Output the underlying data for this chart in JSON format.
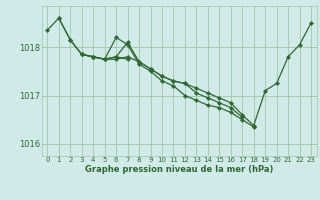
{
  "background_color": "#d0eaea",
  "plot_bg_color": "#d0eaea",
  "line_color": "#2d6a2d",
  "grid_color": "#9fc8a0",
  "xlabel": "Graphe pression niveau de la mer (hPa)",
  "ylim": [
    1015.75,
    1018.85
  ],
  "xlim": [
    -0.5,
    23.5
  ],
  "yticks": [
    1016,
    1017,
    1018
  ],
  "xticks": [
    0,
    1,
    2,
    3,
    4,
    5,
    6,
    7,
    8,
    9,
    10,
    11,
    12,
    13,
    14,
    15,
    16,
    17,
    18,
    19,
    20,
    21,
    22,
    23
  ],
  "series": [
    [
      0,
      1018.35
    ],
    [
      1,
      1018.6
    ],
    [
      null,
      null
    ],
    [
      null,
      null
    ]
  ],
  "lines": [
    {
      "x": [
        0,
        1,
        2,
        3,
        4,
        5,
        6,
        7,
        8,
        9,
        10,
        11,
        12,
        13,
        14,
        15,
        16,
        17,
        18,
        19,
        20,
        21,
        22,
        23
      ],
      "y": [
        1018.35,
        1018.6,
        1018.15,
        1017.85,
        1017.8,
        1017.75,
        1017.8,
        1018.1,
        1017.7,
        1017.55,
        1017.4,
        1017.3,
        1017.25,
        1017.15,
        1017.05,
        1016.95,
        1016.85,
        1016.6,
        1016.38,
        1017.1,
        1017.25,
        1017.8,
        1018.05,
        1018.5
      ]
    },
    {
      "x": [
        1,
        2,
        3,
        4,
        5,
        6,
        7,
        8,
        9,
        10,
        11,
        12,
        13,
        14,
        15,
        16,
        17
      ],
      "y": [
        1018.6,
        1018.15,
        1017.85,
        1017.8,
        1017.75,
        1017.75,
        1017.8,
        1017.7,
        1017.55,
        1017.4,
        1017.3,
        1017.25,
        1017.05,
        1016.95,
        1016.85,
        1016.75,
        1016.55
      ]
    },
    {
      "x": [
        3,
        4,
        5,
        6,
        7,
        8,
        9,
        10,
        11,
        12,
        13,
        14,
        15,
        16,
        17,
        18
      ],
      "y": [
        1017.85,
        1017.8,
        1017.75,
        1018.2,
        1018.05,
        1017.65,
        1017.5,
        1017.3,
        1017.2,
        1017.0,
        1016.9,
        1016.8,
        1016.75,
        1016.65,
        1016.5,
        1016.35
      ]
    },
    {
      "x": [
        3,
        4,
        5,
        6,
        7
      ],
      "y": [
        1017.85,
        1017.8,
        1017.75,
        1017.8,
        1017.75
      ]
    }
  ]
}
